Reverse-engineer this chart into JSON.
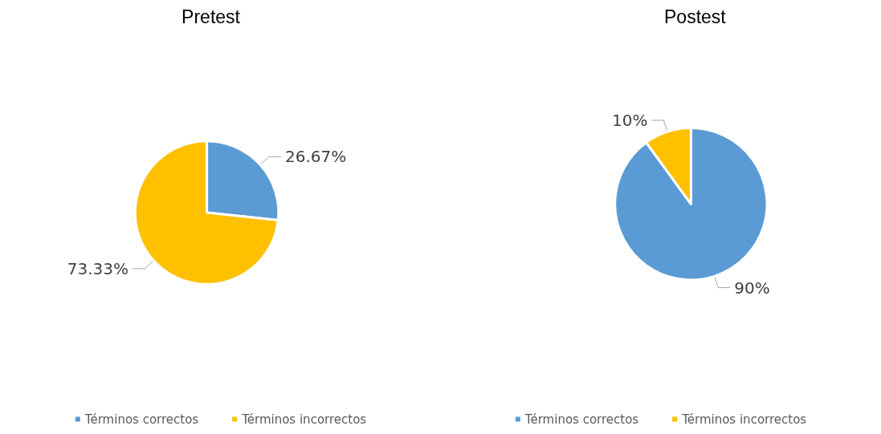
{
  "chart_data": [
    {
      "type": "pie",
      "title": "Pretest",
      "categories": [
        "Términos correctos",
        "Términos incorrectos"
      ],
      "values": [
        26.67,
        73.33
      ],
      "colors": [
        "#5b9bd5",
        "#ffc000"
      ],
      "value_labels": [
        "26.67%",
        "73.33%"
      ],
      "legend": "bottom"
    },
    {
      "type": "pie",
      "title": "Postest",
      "categories": [
        "Términos correctos",
        "Términos incorrectos"
      ],
      "values": [
        90,
        10
      ],
      "colors": [
        "#5b9bd5",
        "#ffc000"
      ],
      "value_labels": [
        "90%",
        "10%"
      ],
      "legend": "bottom"
    }
  ]
}
